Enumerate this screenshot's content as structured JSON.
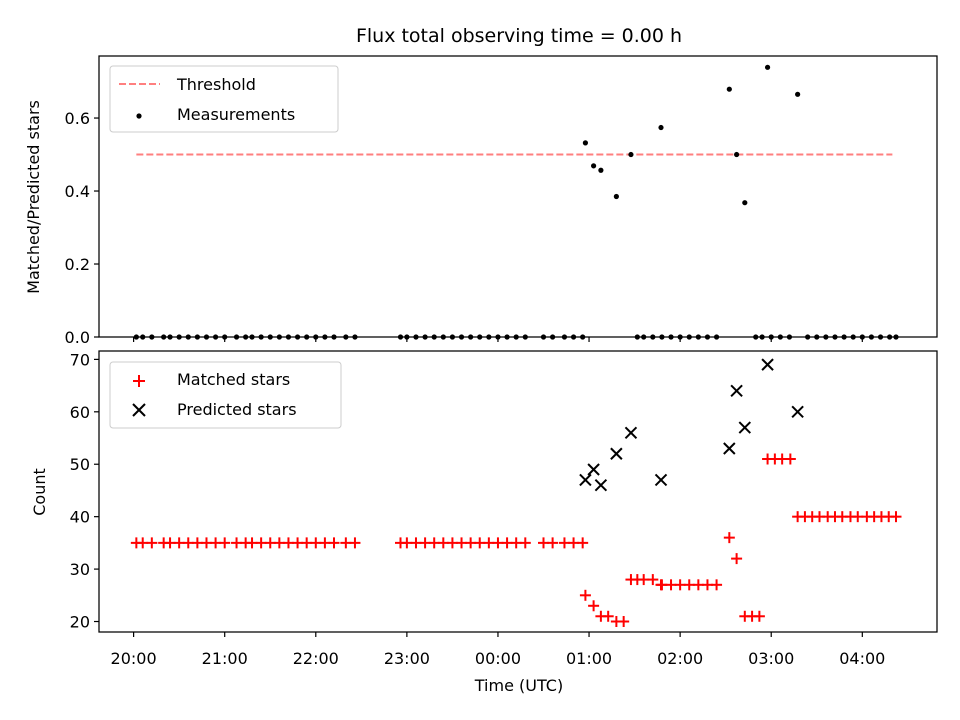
{
  "chart_data": {
    "type": "scatter",
    "title": "Flux total observing time = 0.00 h",
    "xlabel": "Time (UTC)",
    "x_ticks": [
      "20:00",
      "21:00",
      "22:00",
      "23:00",
      "00:00",
      "01:00",
      "02:00",
      "03:00",
      "04:00"
    ],
    "x_tick_hours": [
      0,
      1,
      2,
      3,
      4,
      5,
      6,
      7,
      8
    ],
    "x_unit": "hours after 20:00 UTC",
    "xlim": [
      -0.38,
      8.82
    ],
    "panels": [
      {
        "ylabel": "Matched/Predicted stars",
        "ylim": [
          0,
          0.77
        ],
        "y_ticks": [
          0.0,
          0.2,
          0.4,
          0.6
        ],
        "legend": {
          "placement": "upper-left",
          "entries": [
            "Threshold",
            "Measurements"
          ]
        },
        "threshold": {
          "name": "Threshold",
          "value": 0.5,
          "x_start": 0.03,
          "x_end": 8.33,
          "color": "#ff7f7f",
          "style": "dashed"
        },
        "series": [
          {
            "name": "Measurements",
            "marker": "dot",
            "color": "#000000",
            "points": [
              [
                0.03,
                0
              ],
              [
                0.1,
                0
              ],
              [
                0.2,
                0
              ],
              [
                0.33,
                0
              ],
              [
                0.4,
                0
              ],
              [
                0.5,
                0
              ],
              [
                0.6,
                0
              ],
              [
                0.7,
                0
              ],
              [
                0.8,
                0
              ],
              [
                0.9,
                0
              ],
              [
                1.0,
                0
              ],
              [
                1.13,
                0
              ],
              [
                1.23,
                0
              ],
              [
                1.3,
                0
              ],
              [
                1.4,
                0
              ],
              [
                1.5,
                0
              ],
              [
                1.6,
                0
              ],
              [
                1.7,
                0
              ],
              [
                1.8,
                0
              ],
              [
                1.9,
                0
              ],
              [
                2.0,
                0
              ],
              [
                2.1,
                0
              ],
              [
                2.2,
                0
              ],
              [
                2.33,
                0
              ],
              [
                2.43,
                0
              ],
              [
                2.93,
                0
              ],
              [
                3.0,
                0
              ],
              [
                3.1,
                0
              ],
              [
                3.2,
                0
              ],
              [
                3.3,
                0
              ],
              [
                3.4,
                0
              ],
              [
                3.5,
                0
              ],
              [
                3.6,
                0
              ],
              [
                3.7,
                0
              ],
              [
                3.8,
                0
              ],
              [
                3.9,
                0
              ],
              [
                4.0,
                0
              ],
              [
                4.1,
                0
              ],
              [
                4.2,
                0
              ],
              [
                4.3,
                0
              ],
              [
                4.5,
                0
              ],
              [
                4.6,
                0
              ],
              [
                4.73,
                0
              ],
              [
                4.83,
                0
              ],
              [
                4.93,
                0
              ],
              [
                5.53,
                0
              ],
              [
                5.6,
                0
              ],
              [
                5.7,
                0
              ],
              [
                5.8,
                0
              ],
              [
                5.9,
                0
              ],
              [
                6.0,
                0
              ],
              [
                6.1,
                0
              ],
              [
                6.2,
                0
              ],
              [
                6.3,
                0
              ],
              [
                6.4,
                0
              ],
              [
                6.83,
                0
              ],
              [
                6.9,
                0
              ],
              [
                7.0,
                0
              ],
              [
                7.1,
                0
              ],
              [
                7.2,
                0
              ],
              [
                7.4,
                0
              ],
              [
                7.5,
                0
              ],
              [
                7.6,
                0
              ],
              [
                7.7,
                0
              ],
              [
                7.8,
                0
              ],
              [
                7.9,
                0
              ],
              [
                8.0,
                0
              ],
              [
                8.1,
                0
              ],
              [
                8.2,
                0
              ],
              [
                8.3,
                0
              ],
              [
                8.37,
                0
              ],
              [
                4.96,
                0.532
              ],
              [
                5.05,
                0.469
              ],
              [
                5.13,
                0.457
              ],
              [
                5.3,
                0.385
              ],
              [
                5.46,
                0.5
              ],
              [
                5.79,
                0.574
              ],
              [
                6.54,
                0.679
              ],
              [
                6.62,
                0.5
              ],
              [
                6.71,
                0.368
              ],
              [
                6.96,
                0.739
              ],
              [
                7.29,
                0.665
              ]
            ]
          }
        ]
      },
      {
        "ylabel": "Count",
        "ylim": [
          18,
          71.6
        ],
        "y_ticks": [
          20,
          30,
          40,
          50,
          60,
          70
        ],
        "legend": {
          "placement": "upper-left",
          "entries": [
            "Matched stars",
            "Predicted stars"
          ]
        },
        "series": [
          {
            "name": "Matched stars",
            "marker": "plus",
            "color": "#ff0000",
            "points": [
              [
                0.03,
                35
              ],
              [
                0.1,
                35
              ],
              [
                0.2,
                35
              ],
              [
                0.33,
                35
              ],
              [
                0.4,
                35
              ],
              [
                0.5,
                35
              ],
              [
                0.6,
                35
              ],
              [
                0.7,
                35
              ],
              [
                0.8,
                35
              ],
              [
                0.9,
                35
              ],
              [
                1.0,
                35
              ],
              [
                1.13,
                35
              ],
              [
                1.23,
                35
              ],
              [
                1.3,
                35
              ],
              [
                1.4,
                35
              ],
              [
                1.5,
                35
              ],
              [
                1.6,
                35
              ],
              [
                1.7,
                35
              ],
              [
                1.8,
                35
              ],
              [
                1.9,
                35
              ],
              [
                2.0,
                35
              ],
              [
                2.1,
                35
              ],
              [
                2.2,
                35
              ],
              [
                2.33,
                35
              ],
              [
                2.43,
                35
              ],
              [
                2.93,
                35
              ],
              [
                3.0,
                35
              ],
              [
                3.1,
                35
              ],
              [
                3.2,
                35
              ],
              [
                3.3,
                35
              ],
              [
                3.4,
                35
              ],
              [
                3.5,
                35
              ],
              [
                3.6,
                35
              ],
              [
                3.7,
                35
              ],
              [
                3.8,
                35
              ],
              [
                3.9,
                35
              ],
              [
                4.0,
                35
              ],
              [
                4.1,
                35
              ],
              [
                4.2,
                35
              ],
              [
                4.3,
                35
              ],
              [
                4.5,
                35
              ],
              [
                4.6,
                35
              ],
              [
                4.73,
                35
              ],
              [
                4.83,
                35
              ],
              [
                4.93,
                35
              ],
              [
                4.96,
                25
              ],
              [
                5.05,
                23
              ],
              [
                5.13,
                21
              ],
              [
                5.21,
                21
              ],
              [
                5.3,
                20
              ],
              [
                5.38,
                20
              ],
              [
                5.46,
                28
              ],
              [
                5.53,
                28
              ],
              [
                5.6,
                28
              ],
              [
                5.7,
                28
              ],
              [
                5.79,
                27
              ],
              [
                5.8,
                27
              ],
              [
                5.9,
                27
              ],
              [
                6.0,
                27
              ],
              [
                6.1,
                27
              ],
              [
                6.2,
                27
              ],
              [
                6.3,
                27
              ],
              [
                6.4,
                27
              ],
              [
                6.54,
                36
              ],
              [
                6.62,
                32
              ],
              [
                6.71,
                21
              ],
              [
                6.79,
                21
              ],
              [
                6.87,
                21
              ],
              [
                6.96,
                51
              ],
              [
                7.04,
                51
              ],
              [
                7.12,
                51
              ],
              [
                7.21,
                51
              ],
              [
                7.29,
                40
              ],
              [
                7.37,
                40
              ],
              [
                7.45,
                40
              ],
              [
                7.53,
                40
              ],
              [
                7.62,
                40
              ],
              [
                7.7,
                40
              ],
              [
                7.78,
                40
              ],
              [
                7.87,
                40
              ],
              [
                7.95,
                40
              ],
              [
                8.05,
                40
              ],
              [
                8.13,
                40
              ],
              [
                8.21,
                40
              ],
              [
                8.29,
                40
              ],
              [
                8.37,
                40
              ]
            ]
          },
          {
            "name": "Predicted stars",
            "marker": "x",
            "color": "#000000",
            "points": [
              [
                4.96,
                47
              ],
              [
                5.05,
                49
              ],
              [
                5.13,
                46
              ],
              [
                5.3,
                52
              ],
              [
                5.46,
                56
              ],
              [
                5.79,
                47
              ],
              [
                6.54,
                53
              ],
              [
                6.62,
                64
              ],
              [
                6.71,
                57
              ],
              [
                6.96,
                69
              ],
              [
                7.29,
                60
              ]
            ]
          }
        ]
      }
    ]
  }
}
